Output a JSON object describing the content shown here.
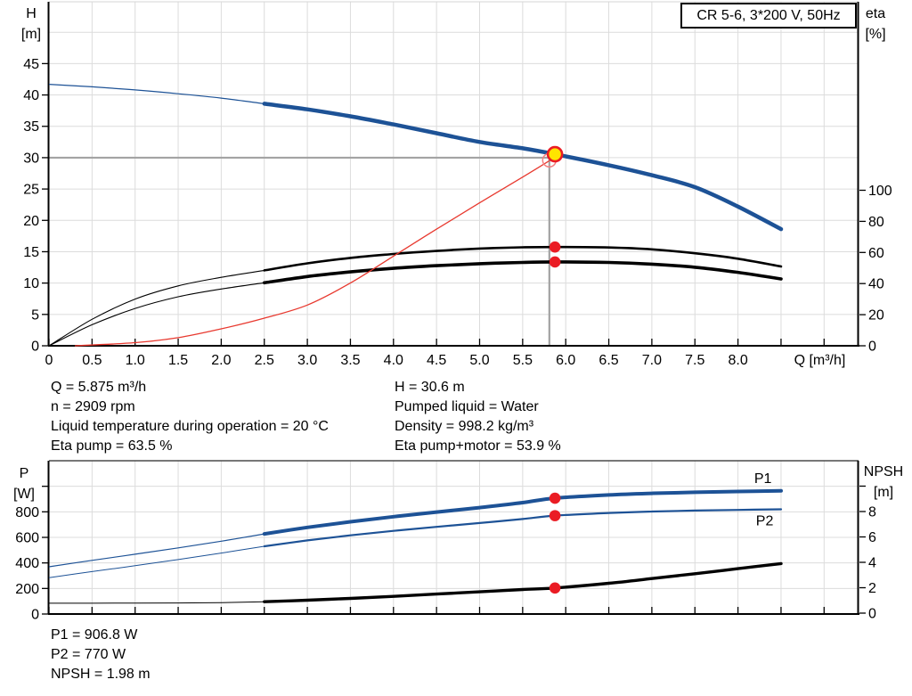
{
  "title_box": "CR 5-6, 3*200 V, 50Hz",
  "info": {
    "top_left": [
      "Q = 5.875 m³/h",
      "n = 2909 rpm",
      "Liquid temperature during operation = 20 °C",
      "Eta pump = 63.5 %"
    ],
    "top_right": [
      "H = 30.6 m",
      "Pumped liquid = Water",
      "Density = 998.2 kg/m³",
      "Eta pump+motor = 53.9 %"
    ],
    "bottom": [
      "P1 = 906.8 W",
      "P2 = 770 W",
      "NPSH = 1.98 m"
    ]
  },
  "colors": {
    "curve_blue": "#1d5296",
    "curve_black": "#000000",
    "system_red": "#e8392f",
    "marker_red": "#ea1c24",
    "marker_yellow": "#ffe400",
    "duty_gray": "#a3a3a3",
    "grid_gray": "#dcdcdc",
    "axis_black": "#000000"
  },
  "chart_data": [
    {
      "type": "line",
      "panel": "upper",
      "x_axis": {
        "label": "Q [m³/h]",
        "label_at_q": 8.95,
        "min": 0,
        "max": 9.4,
        "tick_values": [
          0,
          0.5,
          1,
          1.5,
          2,
          2.5,
          3,
          3.5,
          4,
          4.5,
          5,
          5.5,
          6,
          6.5,
          7,
          7.5,
          8,
          8.5,
          9
        ],
        "tick_labels": [
          "0",
          "0.5",
          "1.0",
          "1.5",
          "2.0",
          "2.5",
          "3.0",
          "3.5",
          "4.0",
          "4.5",
          "5.0",
          "5.5",
          "6.0",
          "6.5",
          "7.0",
          "7.5",
          "8.0",
          "",
          ""
        ]
      },
      "y_left": {
        "label_lines": [
          "H",
          "[m]"
        ],
        "min": 0,
        "max": 54.9,
        "tick_values": [
          0,
          5,
          10,
          15,
          20,
          25,
          30,
          35,
          40,
          45
        ],
        "tick_labels": [
          "0",
          "5",
          "10",
          "15",
          "20",
          "25",
          "30",
          "35",
          "40",
          "45"
        ],
        "grid_values": [
          5,
          10,
          15,
          20,
          25,
          30,
          35,
          40,
          45,
          50
        ]
      },
      "y_right": {
        "label_lines": [
          "eta",
          "[%]"
        ],
        "min": 0,
        "max": 100,
        "tick_values": [
          0,
          20,
          40,
          60,
          80,
          100
        ],
        "tick_labels": [
          "0",
          "20",
          "40",
          "60",
          "80",
          "100"
        ]
      },
      "duty_point": {
        "q_line": 5.81,
        "h_line": 30
      },
      "series": [
        {
          "name": "pump-curve-H",
          "axis": "left",
          "color": "curve_blue",
          "thin_until": 2.5,
          "thin_width": 1.2,
          "width": 4.5,
          "points": [
            [
              0,
              41.7
            ],
            [
              0.5,
              41.3
            ],
            [
              1,
              40.8
            ],
            [
              1.5,
              40.2
            ],
            [
              2,
              39.5
            ],
            [
              2.5,
              38.6
            ],
            [
              3,
              37.7
            ],
            [
              3.5,
              36.6
            ],
            [
              4,
              35.3
            ],
            [
              4.5,
              33.9
            ],
            [
              5,
              32.5
            ],
            [
              5.5,
              31.5
            ],
            [
              5.875,
              30.55
            ],
            [
              6.5,
              28.8
            ],
            [
              7,
              27.2
            ],
            [
              7.5,
              25.3
            ],
            [
              8,
              22.2
            ],
            [
              8.5,
              18.6
            ]
          ]
        },
        {
          "name": "eta-pump-curve",
          "axis": "right",
          "color": "curve_black",
          "thin_until": 2.5,
          "thin_width": 1.1,
          "width": 2.6,
          "points": [
            [
              0,
              0
            ],
            [
              0.5,
              17
            ],
            [
              1,
              30
            ],
            [
              1.5,
              38.5
            ],
            [
              2,
              44
            ],
            [
              2.5,
              48.5
            ],
            [
              3,
              53
            ],
            [
              3.5,
              56.5
            ],
            [
              4,
              59
            ],
            [
              4.5,
              61
            ],
            [
              5,
              62.5
            ],
            [
              5.5,
              63.3
            ],
            [
              5.875,
              63.5
            ],
            [
              6.5,
              63.2
            ],
            [
              7,
              62
            ],
            [
              7.5,
              59.5
            ],
            [
              8,
              56
            ],
            [
              8.5,
              51
            ]
          ]
        },
        {
          "name": "eta-pump-motor-curve",
          "axis": "right",
          "color": "curve_black",
          "thin_until": 2.5,
          "thin_width": 1.1,
          "width": 3.6,
          "points": [
            [
              0,
              0
            ],
            [
              0.5,
              13.5
            ],
            [
              1,
              24
            ],
            [
              1.5,
              31.5
            ],
            [
              2,
              36.5
            ],
            [
              2.5,
              40.5
            ],
            [
              3,
              44.5
            ],
            [
              3.5,
              47.5
            ],
            [
              4,
              49.8
            ],
            [
              4.5,
              51.5
            ],
            [
              5,
              52.8
            ],
            [
              5.5,
              53.6
            ],
            [
              5.875,
              53.9
            ],
            [
              6.5,
              53.6
            ],
            [
              7,
              52.5
            ],
            [
              7.5,
              50.5
            ],
            [
              8,
              47.2
            ],
            [
              8.5,
              43
            ]
          ]
        },
        {
          "name": "system-curve",
          "axis": "left",
          "color": "system_red",
          "width": 1.3,
          "points": [
            [
              0.3,
              0
            ],
            [
              1,
              0.5
            ],
            [
              1.5,
              1.3
            ],
            [
              2,
              2.7
            ],
            [
              2.5,
              4.4
            ],
            [
              3,
              6.5
            ],
            [
              3.5,
              10
            ],
            [
              4,
              14.3
            ],
            [
              4.5,
              18.6
            ],
            [
              5,
              22.8
            ],
            [
              5.5,
              26.9
            ],
            [
              5.81,
              29.5
            ]
          ]
        }
      ],
      "markers": [
        {
          "name": "requested-duty-point",
          "type": "open-circle",
          "axis": "left",
          "q": 5.81,
          "v": 29.6
        },
        {
          "name": "operating-point",
          "type": "yellow-dot",
          "axis": "left",
          "q": 5.875,
          "v": 30.55
        },
        {
          "name": "eta-pump-point",
          "type": "red-dot",
          "axis": "right",
          "q": 5.875,
          "v": 63.5
        },
        {
          "name": "eta-pump-motor-point",
          "type": "red-dot",
          "axis": "right",
          "q": 5.875,
          "v": 53.9
        }
      ]
    },
    {
      "type": "line",
      "panel": "lower",
      "x_axis": {
        "label": "",
        "min": 0,
        "max": 9.4,
        "tick_values": [
          0,
          0.5,
          1,
          1.5,
          2,
          2.5,
          3,
          3.5,
          4,
          4.5,
          5,
          5.5,
          6,
          6.5,
          7,
          7.5,
          8,
          8.5,
          9
        ],
        "tick_labels": [
          "",
          "",
          "",
          "",
          "",
          "",
          "",
          "",
          "",
          "",
          "",
          "",
          "",
          "",
          "",
          "",
          "",
          "",
          ""
        ]
      },
      "y_left": {
        "label_lines": [
          "P",
          "[W]"
        ],
        "min": 0,
        "max": 1200,
        "tick_values": [
          0,
          200,
          400,
          600,
          800,
          1000
        ],
        "tick_labels": [
          "0",
          "200",
          "400",
          "600",
          "800",
          ""
        ],
        "grid_values": [
          200,
          400,
          600,
          800,
          1000
        ]
      },
      "y_right": {
        "label_lines": [
          "NPSH",
          "[m]"
        ],
        "min": 0,
        "max": 12,
        "tick_values": [
          0,
          2,
          4,
          6,
          8,
          10
        ],
        "tick_labels": [
          "0",
          "2",
          "4",
          "6",
          "8",
          ""
        ]
      },
      "series": [
        {
          "name": "p1-curve",
          "axis": "left",
          "color": "curve_blue",
          "thin_until": 2.5,
          "thin_width": 1.2,
          "width": 4,
          "label": "P1",
          "label_at": [
            8.29,
            1060
          ],
          "points": [
            [
              0,
              370
            ],
            [
              0.5,
              420
            ],
            [
              1,
              468
            ],
            [
              1.5,
              518
            ],
            [
              2,
              570
            ],
            [
              2.5,
              627
            ],
            [
              3,
              678
            ],
            [
              3.5,
              722
            ],
            [
              4,
              762
            ],
            [
              4.5,
              798
            ],
            [
              5,
              833
            ],
            [
              5.5,
              872
            ],
            [
              5.875,
              907
            ],
            [
              6.5,
              932
            ],
            [
              7,
              945
            ],
            [
              7.5,
              953
            ],
            [
              8,
              959
            ],
            [
              8.5,
              965
            ]
          ]
        },
        {
          "name": "p2-curve",
          "axis": "left",
          "color": "curve_blue",
          "thin_until": 2.5,
          "thin_width": 1,
          "width": 2.2,
          "label": "P2",
          "label_at": [
            8.31,
            730
          ],
          "points": [
            [
              0,
              285
            ],
            [
              0.5,
              332
            ],
            [
              1,
              378
            ],
            [
              1.5,
              426
            ],
            [
              2,
              477
            ],
            [
              2.5,
              530
            ],
            [
              3,
              576
            ],
            [
              3.5,
              616
            ],
            [
              4,
              651
            ],
            [
              4.5,
              682
            ],
            [
              5,
              712
            ],
            [
              5.5,
              744
            ],
            [
              5.875,
              770
            ],
            [
              6.5,
              791
            ],
            [
              7,
              802
            ],
            [
              7.5,
              810
            ],
            [
              8,
              815
            ],
            [
              8.5,
              820
            ]
          ]
        },
        {
          "name": "npsh-curve",
          "axis": "right",
          "color": "curve_black",
          "thin_until": 2.5,
          "thin_width": 1,
          "width": 3.4,
          "points": [
            [
              0,
              0.78
            ],
            [
              0.5,
              0.78
            ],
            [
              1,
              0.79
            ],
            [
              1.5,
              0.8
            ],
            [
              2,
              0.83
            ],
            [
              2.5,
              0.9
            ],
            [
              3,
              1.02
            ],
            [
              3.5,
              1.16
            ],
            [
              4,
              1.32
            ],
            [
              4.5,
              1.5
            ],
            [
              5,
              1.68
            ],
            [
              5.5,
              1.86
            ],
            [
              5.875,
              1.98
            ],
            [
              6.5,
              2.35
            ],
            [
              7,
              2.72
            ],
            [
              7.5,
              3.1
            ],
            [
              8,
              3.5
            ],
            [
              8.5,
              3.9
            ]
          ]
        }
      ],
      "markers": [
        {
          "name": "p1-point",
          "type": "red-dot",
          "axis": "left",
          "q": 5.875,
          "v": 906.8
        },
        {
          "name": "p2-point",
          "type": "red-dot",
          "axis": "left",
          "q": 5.875,
          "v": 770
        },
        {
          "name": "npsh-point",
          "type": "red-dot",
          "axis": "right",
          "q": 5.875,
          "v": 1.98
        }
      ]
    }
  ]
}
